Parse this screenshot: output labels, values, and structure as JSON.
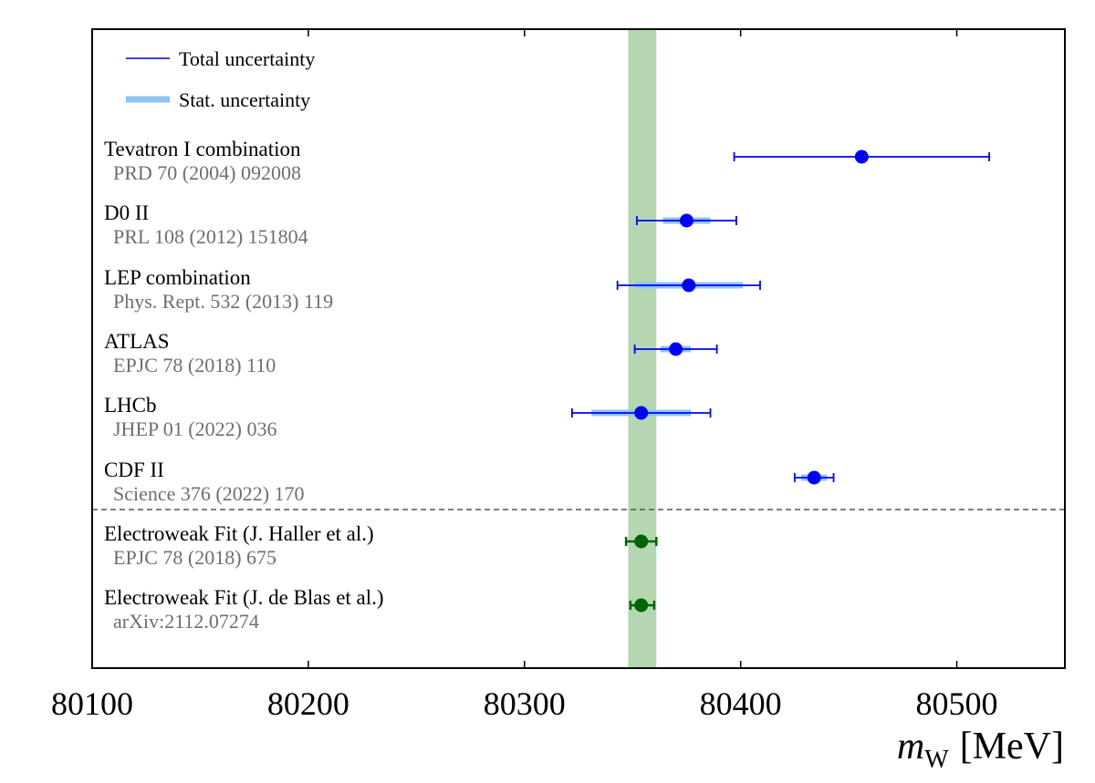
{
  "chart_data": {
    "type": "scatter",
    "xlabel": {
      "symbol": "m",
      "subscript": "W",
      "unit": "[MeV]"
    },
    "xlim": [
      80100,
      80550
    ],
    "xticks": [
      "80100",
      "80200",
      "80300",
      "80400",
      "80500"
    ],
    "grid": false,
    "legend": {
      "placement": "top-left",
      "items": [
        {
          "label": "Total uncertainty",
          "style": "thin-line",
          "color": "#0000cc"
        },
        {
          "label": "Stat. uncertainty",
          "style": "thick-band",
          "color": "#8ec5f0"
        }
      ]
    },
    "band": {
      "from": 80348,
      "to": 80361,
      "color": "#b4d6b0"
    },
    "measurements": [
      {
        "name": "Tevatron I combination",
        "reference": "PRD 70 (2004) 092008",
        "value": 80456,
        "total_lo": 80397,
        "total_hi": 80515,
        "stat_lo": null,
        "stat_hi": null,
        "color": "#0000ff",
        "group": "experiment"
      },
      {
        "name": "D0 II",
        "reference": "PRL 108 (2012) 151804",
        "value": 80375,
        "total_lo": 80352,
        "total_hi": 80398,
        "stat_lo": 80364,
        "stat_hi": 80386,
        "color": "#0000ff",
        "group": "experiment"
      },
      {
        "name": "LEP combination",
        "reference": "Phys. Rept. 532 (2013) 119",
        "value": 80376,
        "total_lo": 80343,
        "total_hi": 80409,
        "stat_lo": 80351,
        "stat_hi": 80401,
        "color": "#0000ff",
        "group": "experiment"
      },
      {
        "name": "ATLAS",
        "reference": "EPJC 78 (2018) 110",
        "value": 80370,
        "total_lo": 80351,
        "total_hi": 80389,
        "stat_lo": 80363,
        "stat_hi": 80377,
        "color": "#0000ff",
        "group": "experiment"
      },
      {
        "name": "LHCb",
        "reference": "JHEP 01 (2022) 036",
        "value": 80354,
        "total_lo": 80322,
        "total_hi": 80386,
        "stat_lo": 80331,
        "stat_hi": 80377,
        "color": "#0000ff",
        "group": "experiment"
      },
      {
        "name": "CDF II",
        "reference": "Science 376 (2022) 170",
        "value": 80434,
        "total_lo": 80425,
        "total_hi": 80443,
        "stat_lo": 80428,
        "stat_hi": 80440,
        "color": "#0000ff",
        "group": "experiment"
      },
      {
        "name": "Electroweak Fit (J. Haller et al.)",
        "reference": "EPJC 78 (2018) 675",
        "value": 80354,
        "total_lo": 80347,
        "total_hi": 80361,
        "stat_lo": null,
        "stat_hi": null,
        "color": "#006400",
        "group": "theory"
      },
      {
        "name": "Electroweak Fit (J. de Blas et al.)",
        "reference": "arXiv:2112.07274",
        "value": 80354,
        "total_lo": 80349,
        "total_hi": 80360,
        "stat_lo": null,
        "stat_hi": null,
        "color": "#006400",
        "group": "theory"
      }
    ]
  }
}
